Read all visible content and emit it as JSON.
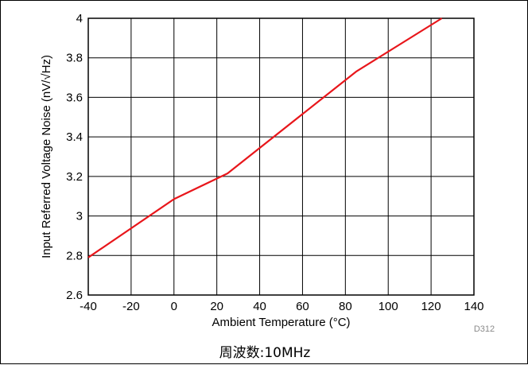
{
  "chart_data": {
    "type": "line",
    "title": "",
    "xlabel": "Ambient Temperature (°C)",
    "ylabel": "Input Referred Voltage Noise (nV/√Hz)",
    "xlim": [
      -40,
      140
    ],
    "ylim": [
      2.6,
      4
    ],
    "xticks": [
      "-40",
      "-20",
      "0",
      "20",
      "40",
      "60",
      "80",
      "100",
      "120",
      "140"
    ],
    "yticks": [
      "2.6",
      "2.8",
      "3",
      "3.2",
      "3.4",
      "3.6",
      "3.8",
      "4"
    ],
    "grid": true,
    "series": [
      {
        "color": "#e8161b",
        "x": [
          -40,
          0,
          25,
          85,
          125
        ],
        "y": [
          2.79,
          3.085,
          3.215,
          3.73,
          4.0
        ]
      }
    ],
    "id_label": "D312"
  },
  "caption": "周波数:10MHz"
}
